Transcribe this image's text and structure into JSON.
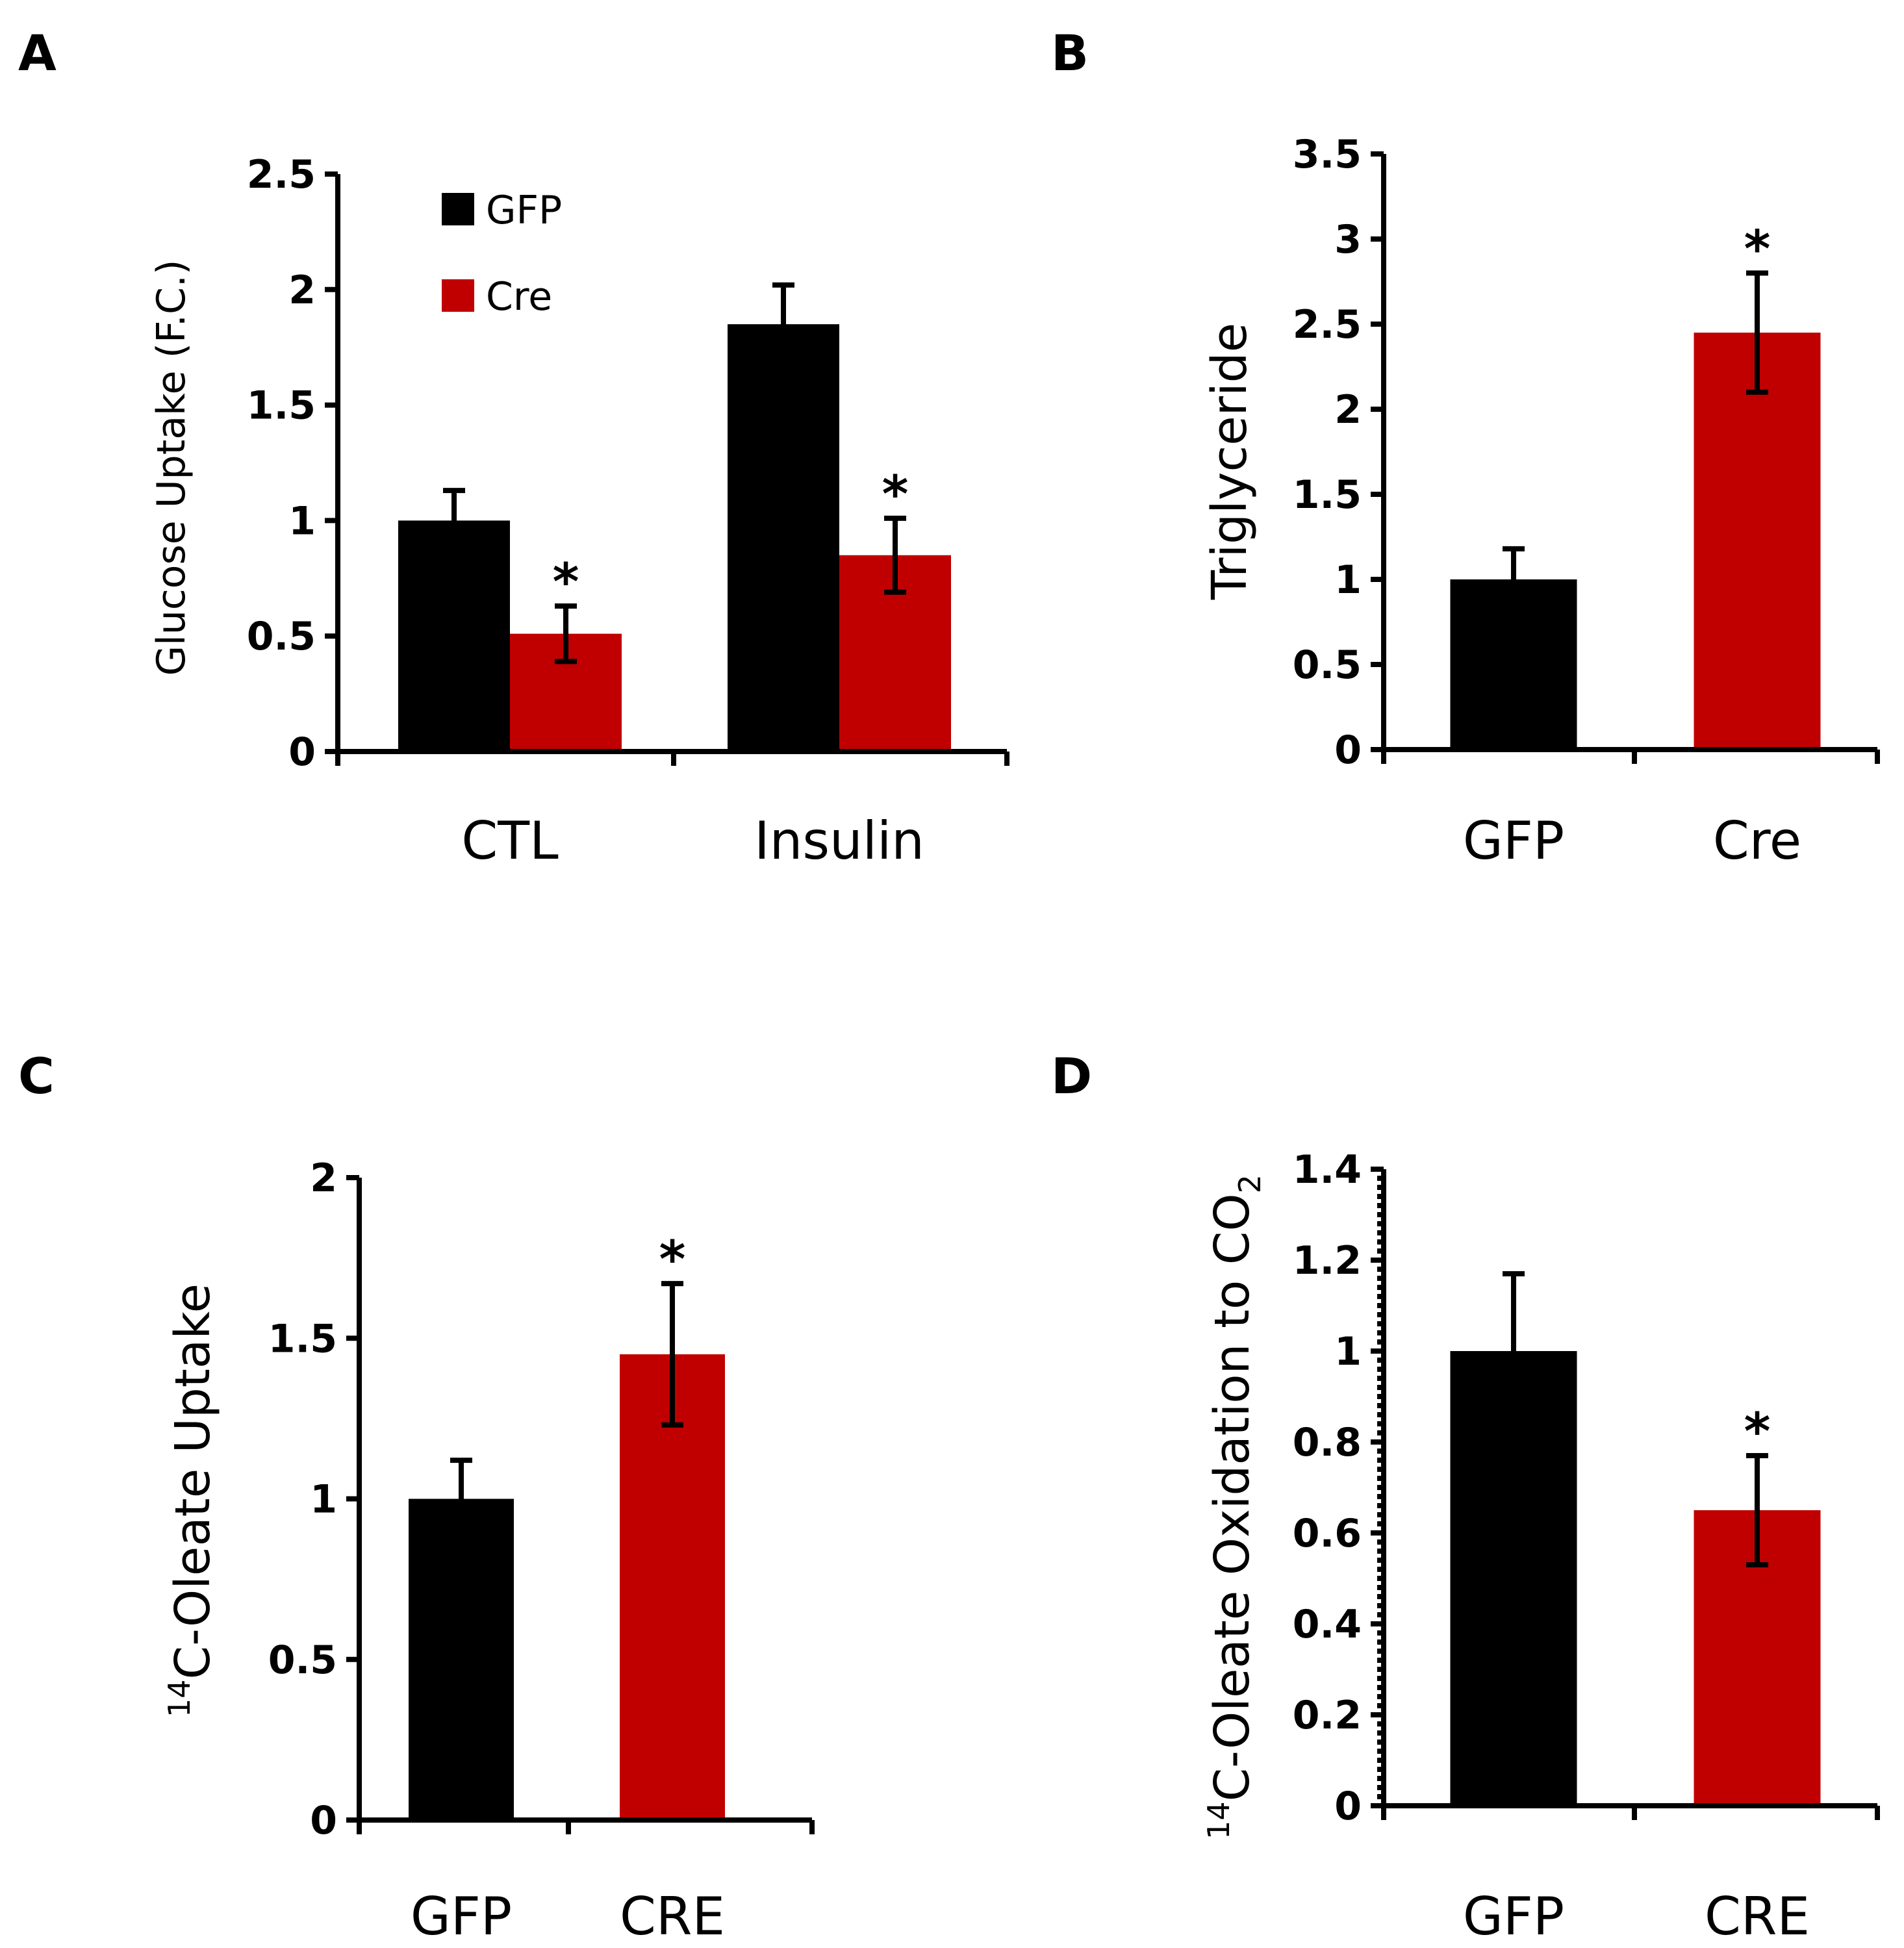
{
  "colors": {
    "GFP": "#000000",
    "Cre": "#c00000"
  },
  "chart_data": [
    {
      "panel": "A",
      "type": "bar",
      "ylabel": "Glucose Uptake (F.C.)",
      "ylim": [
        0,
        2.5
      ],
      "yticks": [
        "0",
        "0.5",
        "1",
        "1.5",
        "2",
        "2.5"
      ],
      "categories": [
        "CTL",
        "Insulin"
      ],
      "legend": [
        "GFP",
        "Cre"
      ],
      "legend_position": "top-left",
      "series": [
        {
          "name": "GFP",
          "values": [
            1.0,
            1.85
          ],
          "errors": [
            0.13,
            0.17
          ],
          "sig": [
            "",
            ""
          ]
        },
        {
          "name": "Cre",
          "values": [
            0.51,
            0.85
          ],
          "errors": [
            0.12,
            0.16
          ],
          "sig": [
            "*",
            "*"
          ]
        }
      ]
    },
    {
      "panel": "B",
      "type": "bar",
      "ylabel": "Triglyceride",
      "ylim": [
        0,
        3.5
      ],
      "yticks": [
        "0",
        "0.5",
        "1",
        "1.5",
        "2",
        "2.5",
        "3",
        "3.5"
      ],
      "categories": [
        "GFP",
        "Cre"
      ],
      "values": [
        1.0,
        2.45
      ],
      "errors": [
        0.18,
        0.35
      ],
      "sig": [
        "",
        "*"
      ]
    },
    {
      "panel": "C",
      "type": "bar",
      "ylabel_sup": "14",
      "ylabel": "C-Oleate Uptake",
      "ylim": [
        0,
        2
      ],
      "yticks": [
        "0",
        "0.5",
        "1",
        "1.5",
        "2"
      ],
      "categories": [
        "GFP",
        "CRE"
      ],
      "values": [
        1.0,
        1.45
      ],
      "errors": [
        0.12,
        0.22
      ],
      "sig": [
        "",
        "*"
      ]
    },
    {
      "panel": "D",
      "type": "bar",
      "ylabel_sup": "14",
      "ylabel": "C-Oleate Oxidation to CO",
      "ylabel_sub": "2",
      "ylim": [
        0,
        1.4
      ],
      "yticks": [
        "0",
        "0.2",
        "0.4",
        "0.6",
        "0.8",
        "1",
        "1.2",
        "1.4"
      ],
      "categories": [
        "GFP",
        "CRE"
      ],
      "values": [
        1.0,
        0.65
      ],
      "errors": [
        0.17,
        0.12
      ],
      "sig": [
        "",
        "*"
      ]
    }
  ]
}
